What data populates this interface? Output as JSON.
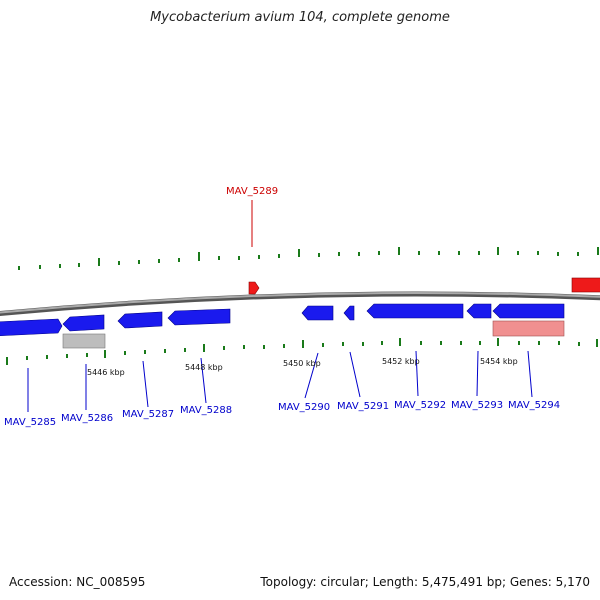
{
  "title": "Mycobacterium avium 104, complete genome",
  "footer": {
    "accession": "Accession: NC_008595",
    "topology": "Topology: circular; Length: 5,475,491 bp; Genes: 5,170"
  },
  "colors": {
    "backbone": "#888888",
    "gene_forward_blue": "#1a1aee",
    "gene_red": "#ee1a1a",
    "gene_pink": "#f09090",
    "gene_gray": "#bdbdbd",
    "tick_green": "#1a7a1a",
    "label_blue": "#0000cc",
    "label_red": "#cc0000"
  },
  "kbp_labels": [
    "5446 kbp",
    "5448 kbp",
    "5450 kbp",
    "5452 kbp",
    "5454 kbp"
  ],
  "genes": [
    {
      "name": "MAV_5285",
      "color": "blue"
    },
    {
      "name": "MAV_5286",
      "color": "blue"
    },
    {
      "name": "MAV_5287",
      "color": "blue"
    },
    {
      "name": "MAV_5288",
      "color": "blue"
    },
    {
      "name": "MAV_5289",
      "color": "red"
    },
    {
      "name": "MAV_5290",
      "color": "blue"
    },
    {
      "name": "MAV_5291",
      "color": "blue"
    },
    {
      "name": "MAV_5292",
      "color": "blue"
    },
    {
      "name": "MAV_5293",
      "color": "blue"
    },
    {
      "name": "MAV_5294",
      "color": "blue"
    }
  ]
}
